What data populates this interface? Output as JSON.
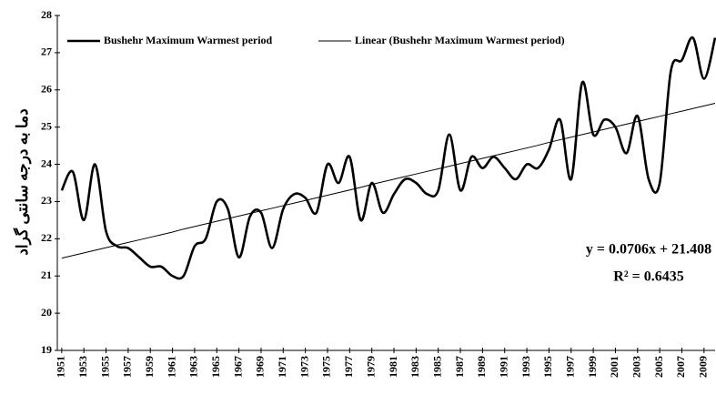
{
  "chart_data": {
    "type": "line",
    "y_label": "دما به درجه سانتی گراد",
    "x": [
      1951,
      1952,
      1953,
      1954,
      1955,
      1956,
      1957,
      1958,
      1959,
      1960,
      1961,
      1962,
      1963,
      1964,
      1965,
      1966,
      1967,
      1968,
      1969,
      1970,
      1971,
      1972,
      1973,
      1974,
      1975,
      1976,
      1977,
      1978,
      1979,
      1980,
      1981,
      1982,
      1983,
      1984,
      1985,
      1986,
      1987,
      1988,
      1989,
      1990,
      1991,
      1992,
      1993,
      1994,
      1995,
      1996,
      1997,
      1998,
      1999,
      2000,
      2001,
      2002,
      2003,
      2004,
      2005,
      2006,
      2007,
      2008,
      2009,
      2010
    ],
    "series": [
      {
        "name": "Bushehr Maximum Warmest period",
        "color": "#000000",
        "width": 2.6,
        "values": [
          23.3,
          23.8,
          22.5,
          24.0,
          22.2,
          21.8,
          21.75,
          21.5,
          21.25,
          21.25,
          21.0,
          21.0,
          21.8,
          22.0,
          23.0,
          22.8,
          21.5,
          22.6,
          22.7,
          21.75,
          22.8,
          23.2,
          23.1,
          22.7,
          24.0,
          23.5,
          24.2,
          22.5,
          23.5,
          22.7,
          23.2,
          23.6,
          23.5,
          23.2,
          23.3,
          24.8,
          23.3,
          24.2,
          23.9,
          24.2,
          23.9,
          23.6,
          24.0,
          23.9,
          24.4,
          25.2,
          23.6,
          26.2,
          24.8,
          25.2,
          25.0,
          24.3,
          25.3,
          23.6,
          23.5,
          26.5,
          26.8,
          27.4,
          26.3,
          27.4
        ]
      },
      {
        "name": "Linear (Bushehr Maximum Warmest period)",
        "color": "#000000",
        "width": 1,
        "values": [
          21.48,
          21.55,
          21.62,
          21.69,
          21.76,
          21.83,
          21.9,
          21.97,
          22.04,
          22.11,
          22.18,
          22.26,
          22.33,
          22.4,
          22.47,
          22.54,
          22.61,
          22.68,
          22.75,
          22.82,
          22.89,
          22.96,
          23.03,
          23.1,
          23.17,
          23.24,
          23.31,
          23.38,
          23.46,
          23.53,
          23.6,
          23.67,
          23.74,
          23.81,
          23.88,
          23.95,
          24.02,
          24.09,
          24.16,
          24.23,
          24.3,
          24.37,
          24.44,
          24.51,
          24.59,
          24.66,
          24.73,
          24.8,
          24.87,
          24.94,
          25.01,
          25.08,
          25.15,
          25.22,
          25.29,
          25.36,
          25.43,
          25.5,
          25.57,
          25.64
        ]
      }
    ],
    "annotations": [
      "y = 0.0706x + 21.408",
      "R² = 0.6435"
    ],
    "xlim": [
      1950.6,
      2010
    ],
    "xticks": [
      1951,
      1953,
      1955,
      1957,
      1959,
      1961,
      1963,
      1965,
      1967,
      1969,
      1971,
      1973,
      1975,
      1977,
      1979,
      1981,
      1983,
      1985,
      1987,
      1989,
      1991,
      1993,
      1995,
      1997,
      1999,
      2001,
      2003,
      2005,
      2007,
      2009
    ],
    "ylim": [
      19,
      28
    ],
    "yticks": [
      19,
      20,
      21,
      22,
      23,
      24,
      25,
      26,
      27,
      28
    ],
    "grid": false
  }
}
